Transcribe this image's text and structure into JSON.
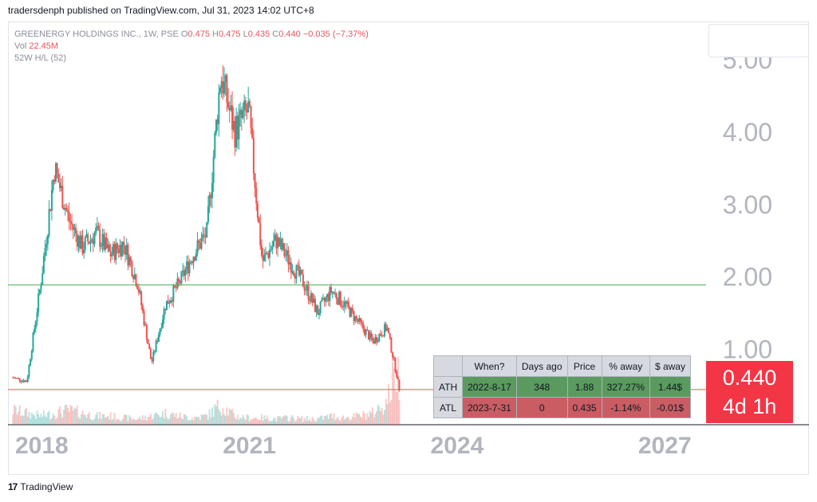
{
  "publisher_line": "tradersdenph published on TradingView.com, Jul 31, 2023 14:02 UTC+8",
  "legend": {
    "symbol": "GREENERGY HOLDINGS INC., 1W, PSE",
    "o_label": "O",
    "o": "0.475",
    "h_label": "H",
    "h": "0.475",
    "l_label": "L",
    "l": "0.435",
    "c_label": "C",
    "c": "0.440",
    "change": "−0.035 (−7.37%)",
    "vol_label": "Vol",
    "vol": "22.45M",
    "indicator": "52W H/L (52)"
  },
  "price_box": {
    "price": "0.440",
    "countdown": "4d 1h"
  },
  "stats_table": {
    "headers": [
      "",
      "When?",
      "Days ago",
      "Price",
      "% away",
      "$ away"
    ],
    "rows": [
      {
        "label": "ATH",
        "when": "2022-8-17",
        "days_ago": "348",
        "price": "1.88",
        "pct_away": "327.27%",
        "usd_away": "1.44$"
      },
      {
        "label": "ATL",
        "when": "2023-7-31",
        "days_ago": "0",
        "price": "0.435",
        "pct_away": "-1.14%",
        "usd_away": "-0.01$"
      }
    ]
  },
  "footer": {
    "logo": "17",
    "brand": "TradingView"
  },
  "colors": {
    "up": "#26a69a",
    "down": "#ef5350",
    "ath_line": "#4caf50",
    "atl_line": "#ef5350",
    "axis_text": "#b2b5be",
    "price_box": "#f23645"
  },
  "chart_data": {
    "type": "candlestick",
    "timeframe": "1W",
    "y_ticks": [
      "1.00",
      "2.00",
      "3.00",
      "4.00",
      "5.00"
    ],
    "y_tick_values": [
      1,
      2,
      3,
      4,
      5
    ],
    "x_ticks": [
      "2018",
      "2021",
      "2024",
      "2027"
    ],
    "x_tick_values": [
      2018,
      2021,
      2024,
      2027
    ],
    "ylim": [
      -0.05,
      5.0
    ],
    "xlim": [
      2017.95,
      2028.0
    ],
    "horizontal_lines": [
      {
        "name": "ATH",
        "value": 1.88
      },
      {
        "name": "ATL",
        "value": 0.435
      }
    ],
    "last_price": 0.44,
    "series": [
      {
        "name": "Price (close)",
        "x": [
          2018.0,
          2018.2,
          2018.4,
          2018.6,
          2018.8,
          2019.0,
          2019.2,
          2019.4,
          2019.6,
          2019.8,
          2020.0,
          2020.2,
          2020.4,
          2020.6,
          2020.8,
          2021.0,
          2021.2,
          2021.4,
          2021.6,
          2021.8,
          2022.0,
          2022.2,
          2022.4,
          2022.6,
          2022.8,
          2023.0,
          2023.2,
          2023.4,
          2023.55,
          2023.58
        ],
        "close": [
          0.6,
          0.55,
          1.9,
          3.5,
          2.8,
          2.4,
          2.6,
          2.3,
          2.45,
          1.9,
          0.8,
          1.6,
          1.9,
          2.3,
          2.6,
          4.8,
          4.0,
          4.3,
          2.2,
          2.5,
          2.2,
          1.9,
          1.5,
          1.8,
          1.6,
          1.35,
          1.1,
          1.3,
          0.6,
          0.44
        ]
      },
      {
        "name": "Volume",
        "values_relative": [
          0.25,
          0.2,
          0.15,
          0.2,
          0.25,
          0.2,
          0.15,
          0.15,
          0.12,
          0.1,
          0.15,
          0.2,
          0.15,
          0.12,
          0.15,
          0.35,
          0.15,
          0.12,
          0.12,
          0.1,
          0.12,
          0.1,
          0.1,
          0.15,
          0.12,
          0.15,
          0.2,
          0.4,
          1.0,
          0.8
        ]
      }
    ]
  }
}
